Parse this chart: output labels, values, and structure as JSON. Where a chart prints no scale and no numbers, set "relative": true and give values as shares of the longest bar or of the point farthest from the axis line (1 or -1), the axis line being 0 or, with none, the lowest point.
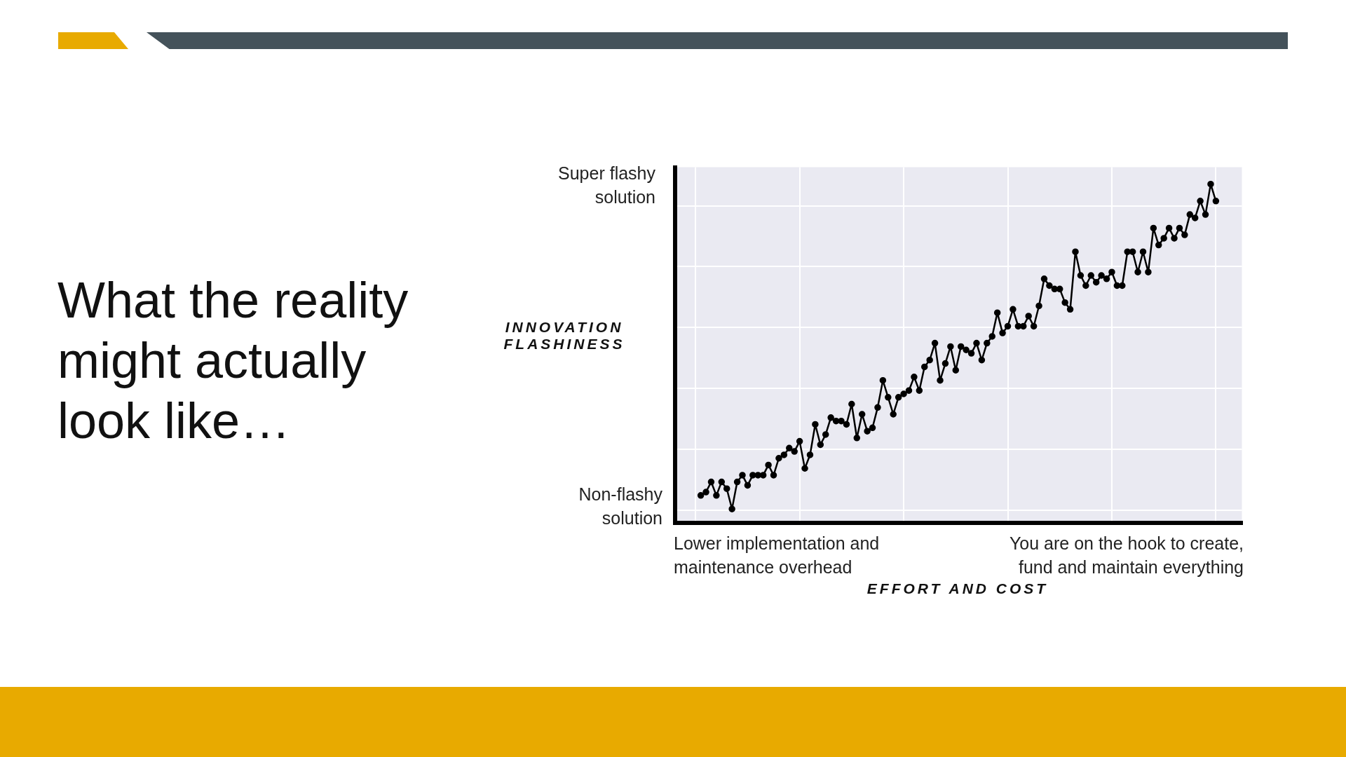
{
  "chart_data": {
    "type": "line",
    "title": "What the reality might actually look like…",
    "xlabel": "EFFORT AND COST",
    "ylabel": "INNOVATION FLASHINESS",
    "annotations": [
      "Super flashy solution",
      "Non-flashy solution",
      "Lower implementation and maintenance overhead",
      "You are on the hook to create, fund and maintain everything"
    ],
    "categories": [
      null,
      null,
      null,
      null,
      null,
      null,
      null,
      null,
      null,
      null,
      null,
      null,
      null,
      null,
      null,
      null,
      null,
      null,
      null,
      null,
      null,
      null,
      null,
      null,
      null,
      null,
      null,
      null,
      null,
      null,
      null,
      null,
      null,
      null,
      null,
      null,
      null,
      null,
      null,
      null,
      null,
      null,
      null,
      null,
      null,
      null,
      null,
      null,
      null,
      null,
      null,
      null,
      null,
      null,
      null,
      null,
      null,
      null,
      null,
      null,
      null,
      null,
      null,
      null,
      null,
      null,
      null,
      null,
      null,
      null,
      null,
      null,
      null,
      null,
      null,
      null,
      null,
      null,
      null,
      null,
      null,
      null,
      null,
      null,
      null,
      null,
      null,
      null,
      null,
      null,
      null,
      null,
      null,
      null,
      null,
      null,
      null,
      null,
      null,
      null
    ],
    "values": [
      0.08,
      0.09,
      0.12,
      0.08,
      0.12,
      0.1,
      0.04,
      0.12,
      0.14,
      0.11,
      0.14,
      0.14,
      0.14,
      0.17,
      0.14,
      0.19,
      0.2,
      0.22,
      0.21,
      0.24,
      0.16,
      0.2,
      0.29,
      0.23,
      0.26,
      0.31,
      0.3,
      0.3,
      0.29,
      0.35,
      0.25,
      0.32,
      0.27,
      0.28,
      0.34,
      0.42,
      0.37,
      0.32,
      0.37,
      0.38,
      0.39,
      0.43,
      0.39,
      0.46,
      0.48,
      0.53,
      0.42,
      0.47,
      0.52,
      0.45,
      0.52,
      0.51,
      0.5,
      0.53,
      0.48,
      0.53,
      0.55,
      0.62,
      0.56,
      0.58,
      0.63,
      0.58,
      0.58,
      0.61,
      0.58,
      0.64,
      0.72,
      0.7,
      0.69,
      0.69,
      0.65,
      0.63,
      0.8,
      0.73,
      0.7,
      0.73,
      0.71,
      0.73,
      0.72,
      0.74,
      0.7,
      0.7,
      0.8,
      0.8,
      0.74,
      0.8,
      0.74,
      0.87,
      0.82,
      0.84,
      0.87,
      0.84,
      0.87,
      0.85,
      0.91,
      0.9,
      0.95,
      0.91,
      1,
      0.95
    ],
    "color": "#000000",
    "relative": true,
    "grid": true,
    "marker": "circle"
  }
}
